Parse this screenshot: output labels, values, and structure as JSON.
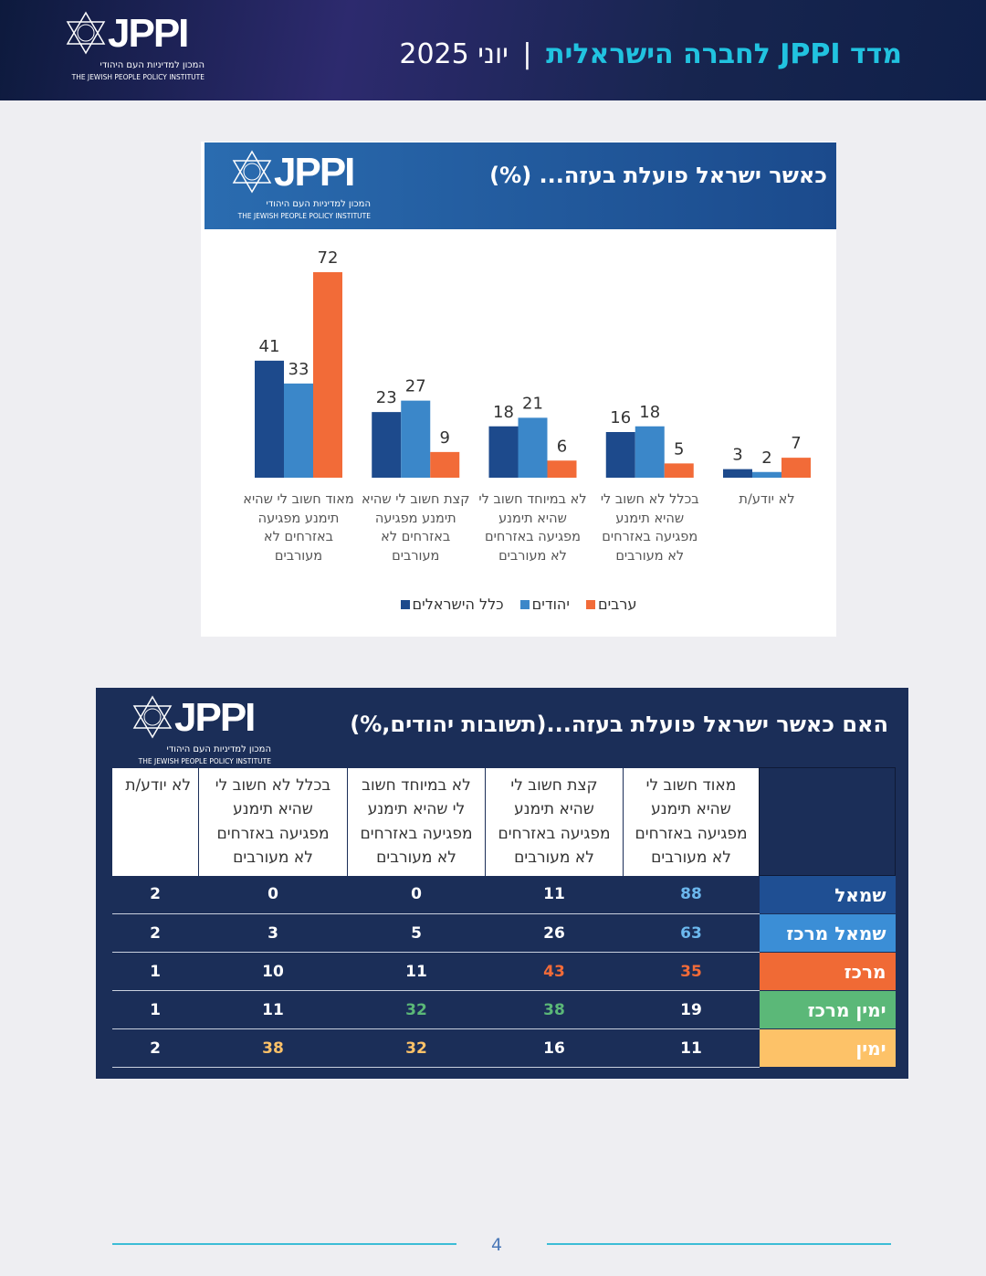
{
  "header": {
    "title": "מדד JPPI לחברה הישראלית",
    "date": "יוני 2025"
  },
  "logo": {
    "name": "JPPI",
    "hebrew": "המכון למדיניות העם היהודי",
    "english": "THE JEWISH PEOPLE POLICY INSTITUTE"
  },
  "chart_data": {
    "type": "bar",
    "title": "כאשר ישראל פועלת בעזה... (%)",
    "categories": [
      "מאוד חשוב לי שהיא תימנע מפגיעה באזרחים לא מעורבים",
      "קצת חשוב לי שהיא תימנע מפגיעה באזרחים לא מעורבים",
      "לא במיוחד חשוב לי שהיא תימנע מפגיעה באזרחים לא מעורבים",
      "בכלל לא חשוב לי שהיא תימנע מפגיעה באזרחים לא מעורבים",
      "לא יודע/ת"
    ],
    "series": [
      {
        "name": "כלל הישראלים",
        "color": "#1d4a8c",
        "values": [
          41,
          23,
          18,
          16,
          3
        ]
      },
      {
        "name": "יהודים",
        "color": "#3b87c9",
        "values": [
          33,
          27,
          21,
          18,
          2
        ]
      },
      {
        "name": "ערבים",
        "color": "#f26b38",
        "values": [
          72,
          9,
          6,
          5,
          7
        ]
      }
    ]
  },
  "table": {
    "title": "האם כאשר ישראל פועלת בעזה...(תשובות יהודים,%)",
    "columns": [
      "מאוד חשוב לי שהיא תימנע מפגיעה באזרחים לא מעורבים",
      "קצת חשוב לי שהיא תימנע מפגיעה באזרחים לא מעורבים",
      "לא במיוחד חשוב לי שהיא תימנע מפגיעה באזרחים לא מעורבים",
      "בכלל לא חשוב לי שהיא תימנע מפגיעה באזרחים לא מעורבים",
      "לא יודע/ת"
    ],
    "rows": [
      {
        "label": "שמאל",
        "color": "#1f4f93",
        "values": [
          88,
          11,
          0,
          0,
          2
        ],
        "value_colors": [
          "#6cb8ee",
          "#ffffff",
          "#ffffff",
          "#ffffff",
          "#ffffff"
        ]
      },
      {
        "label": "שמאל מרכז",
        "color": "#3b8ed6",
        "values": [
          63,
          26,
          5,
          3,
          2
        ],
        "value_colors": [
          "#6cb8ee",
          "#ffffff",
          "#ffffff",
          "#ffffff",
          "#ffffff"
        ]
      },
      {
        "label": "מרכז",
        "color": "#f06a35",
        "values": [
          35,
          43,
          11,
          10,
          1
        ],
        "value_colors": [
          "#f26b38",
          "#f26b38",
          "#ffffff",
          "#ffffff",
          "#ffffff"
        ]
      },
      {
        "label": "ימין מרכז",
        "color": "#5bb878",
        "values": [
          19,
          38,
          32,
          11,
          1
        ],
        "value_colors": [
          "#ffffff",
          "#5bb878",
          "#5bb878",
          "#ffffff",
          "#ffffff"
        ]
      },
      {
        "label": "ימין",
        "color": "#fdc268",
        "values": [
          11,
          16,
          32,
          38,
          2
        ],
        "value_colors": [
          "#ffffff",
          "#ffffff",
          "#fdc268",
          "#fdc268",
          "#ffffff"
        ]
      }
    ]
  },
  "footer": {
    "page": "4"
  }
}
